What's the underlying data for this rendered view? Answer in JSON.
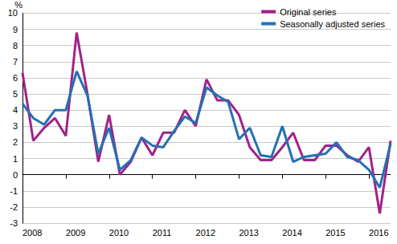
{
  "chart_data": {
    "type": "line",
    "y_label": "%",
    "categories": [
      "2008",
      null,
      null,
      null,
      "2009",
      null,
      null,
      null,
      "2010",
      null,
      null,
      null,
      "2011",
      null,
      null,
      null,
      "2012",
      null,
      null,
      null,
      "2013",
      null,
      null,
      null,
      "2014",
      null,
      null,
      null,
      "2015",
      null,
      null,
      null,
      "2016",
      null,
      null
    ],
    "series": [
      {
        "name": "Original series",
        "color": "#a0228c",
        "values": [
          6.3,
          2.1,
          2.9,
          3.5,
          2.4,
          8.8,
          5.0,
          0.8,
          3.7,
          0.0,
          0.8,
          2.3,
          1.2,
          2.6,
          2.6,
          4.0,
          3.0,
          5.9,
          4.6,
          4.6,
          3.7,
          1.7,
          0.9,
          0.9,
          1.7,
          2.6,
          0.9,
          0.9,
          1.8,
          1.8,
          1.2,
          0.8,
          1.7,
          -2.4,
          2.1
        ]
      },
      {
        "name": "Seasonally adjusted series",
        "color": "#2371b2",
        "values": [
          4.4,
          3.5,
          3.1,
          4.0,
          4.0,
          6.4,
          4.9,
          1.3,
          2.9,
          0.3,
          0.9,
          2.3,
          1.8,
          1.7,
          2.7,
          3.6,
          3.2,
          5.4,
          4.9,
          4.5,
          2.2,
          2.9,
          1.2,
          1.1,
          3.0,
          0.8,
          1.1,
          1.2,
          1.3,
          2.0,
          1.1,
          0.9,
          0.3,
          -0.8,
          1.9
        ]
      }
    ],
    "ylim": [
      -3,
      10
    ],
    "yticks": [
      -3,
      -2,
      -1,
      0,
      1,
      2,
      3,
      4,
      5,
      6,
      7,
      8,
      9,
      10
    ],
    "grid": true,
    "legend": "top-right"
  }
}
